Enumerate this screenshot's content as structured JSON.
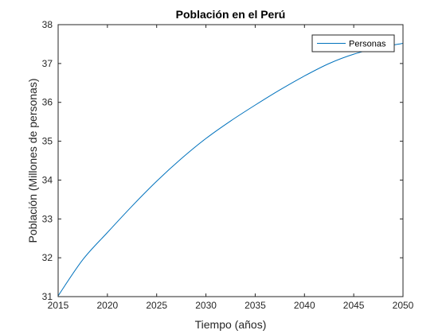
{
  "chart_data": {
    "type": "line",
    "title": "Población en el Perú",
    "xlabel": "Tiempo (años)",
    "ylabel": "Población (Millones de personas)",
    "xlim": [
      2015,
      2050
    ],
    "ylim": [
      31,
      38
    ],
    "xticks": [
      2015,
      2020,
      2025,
      2030,
      2035,
      2040,
      2045,
      2050
    ],
    "yticks": [
      31,
      32,
      33,
      34,
      35,
      36,
      37,
      38
    ],
    "grid": false,
    "legend_position": "top-right",
    "series": [
      {
        "name": "Personas",
        "color": "#0072BD",
        "x": [
          2015,
          2017.5,
          2020,
          2022.5,
          2025,
          2027.5,
          2030,
          2032.5,
          2035,
          2037.5,
          2040,
          2042.5,
          2045,
          2047.5,
          2050
        ],
        "y": [
          31.02,
          31.95,
          32.65,
          33.33,
          33.97,
          34.55,
          35.07,
          35.52,
          35.93,
          36.32,
          36.68,
          37.0,
          37.24,
          37.4,
          37.52
        ]
      }
    ]
  }
}
